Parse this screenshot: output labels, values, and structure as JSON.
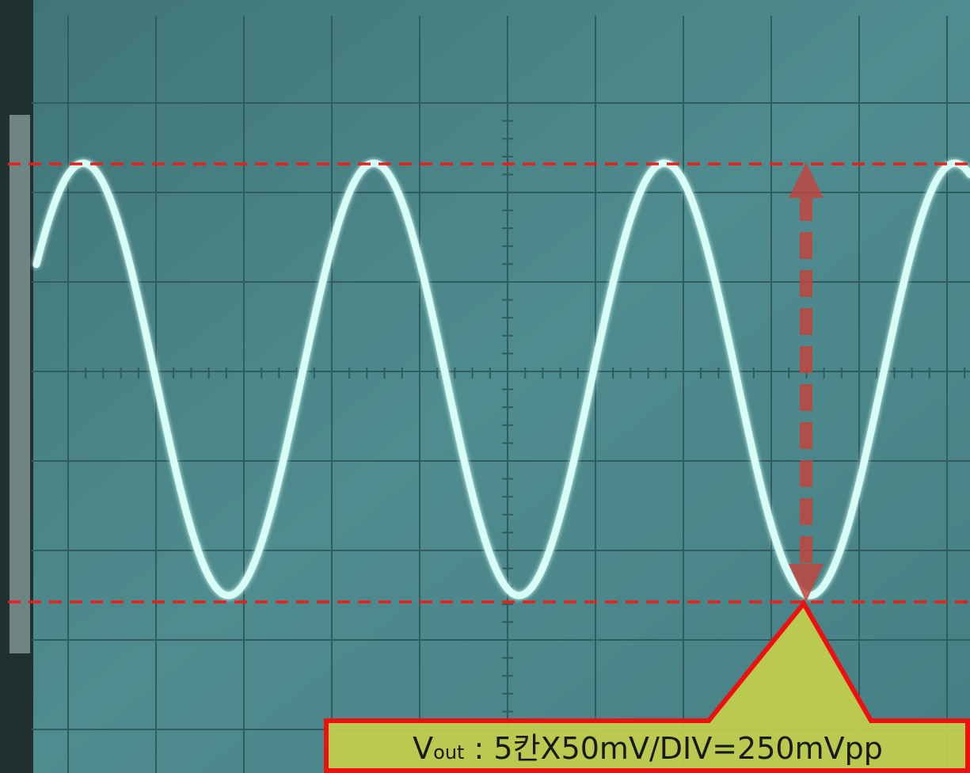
{
  "annotation": {
    "symbol": "V",
    "subscript": "out",
    "text": " : 5칸X50mV/DIV=250mVpp"
  }
}
